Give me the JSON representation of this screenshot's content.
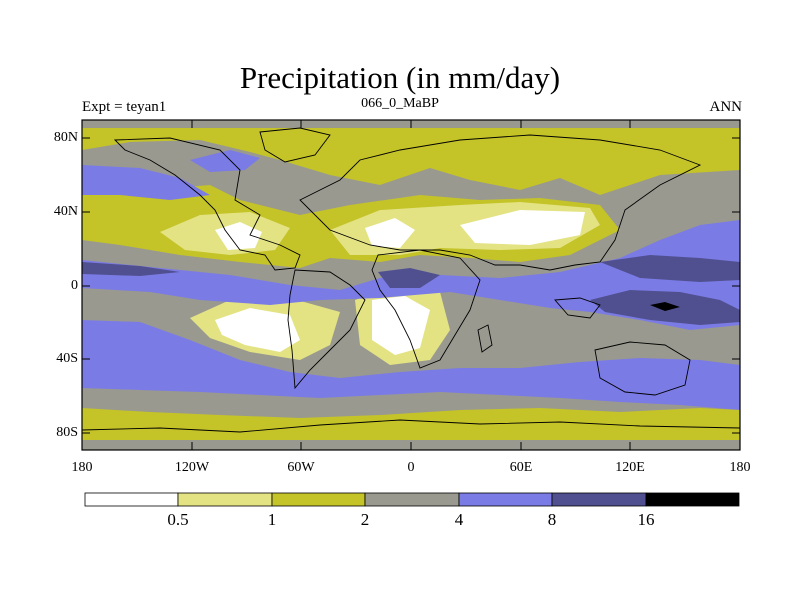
{
  "plot": {
    "title": "Precipitation (in mm/day)",
    "left_string": "Expt = teyan1",
    "center_string": "066_0_MaBP",
    "right_string": "ANN"
  },
  "axes": {
    "lat_labels": [
      "80N",
      "40N",
      "0",
      "40S",
      "80S"
    ],
    "lon_labels": [
      "180",
      "120W",
      "60W",
      "0",
      "60E",
      "120E",
      "180"
    ]
  },
  "colorbar": {
    "colors": [
      "#ffffff",
      "#e3e384",
      "#c4c328",
      "#999990",
      "#7b7be6",
      "#505090",
      "#000000"
    ],
    "labels": [
      "0.5",
      "1",
      "2",
      "4",
      "8",
      "16"
    ]
  },
  "colors": {
    "level_0": "#ffffff",
    "level_1": "#e3e384",
    "level_2": "#c4c328",
    "level_3": "#999990",
    "level_4": "#7b7be6",
    "level_5": "#505090",
    "level_6": "#000000"
  }
}
